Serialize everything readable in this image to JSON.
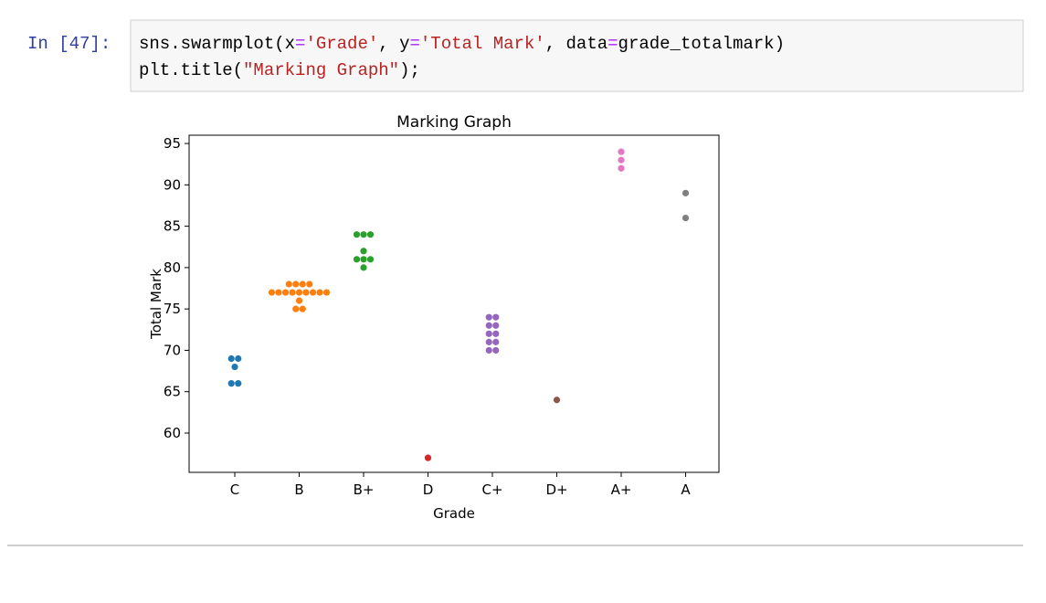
{
  "prompt": "In [47]:",
  "code": [
    [
      "sns.swarmplot(x",
      "=",
      "'Grade'",
      ", y",
      "=",
      "'Total Mark'",
      ", data",
      "=",
      "grade_totalmark)"
    ],
    [
      "plt.title(",
      "\"Marking Graph\"",
      ");"
    ]
  ],
  "chart_data": {
    "type": "swarm",
    "title": "Marking Graph",
    "x_label": "Grade",
    "y_label": "Total Mark",
    "categories": [
      "C",
      "B",
      "B+",
      "D",
      "C+",
      "D+",
      "A+",
      "A"
    ],
    "colors": [
      "#1f77b4",
      "#ff7f0e",
      "#2ca02c",
      "#d62728",
      "#9467bd",
      "#8c564b",
      "#e377c2",
      "#7f7f7f"
    ],
    "values": [
      [
        66,
        66,
        68,
        69,
        69
      ],
      [
        75,
        75,
        76,
        77,
        77,
        77,
        77,
        77,
        77,
        77,
        77,
        77,
        78,
        78,
        78,
        78
      ],
      [
        80,
        81,
        81,
        81,
        82,
        84,
        84,
        84
      ],
      [
        57
      ],
      [
        70,
        70,
        71,
        71,
        72,
        72,
        73,
        73,
        74,
        74
      ],
      [
        64
      ],
      [
        92,
        93,
        94
      ],
      [
        86,
        89
      ]
    ],
    "ylim": [
      55.25,
      96
    ],
    "yticks": [
      60,
      65,
      70,
      75,
      80,
      85,
      90,
      95
    ]
  }
}
